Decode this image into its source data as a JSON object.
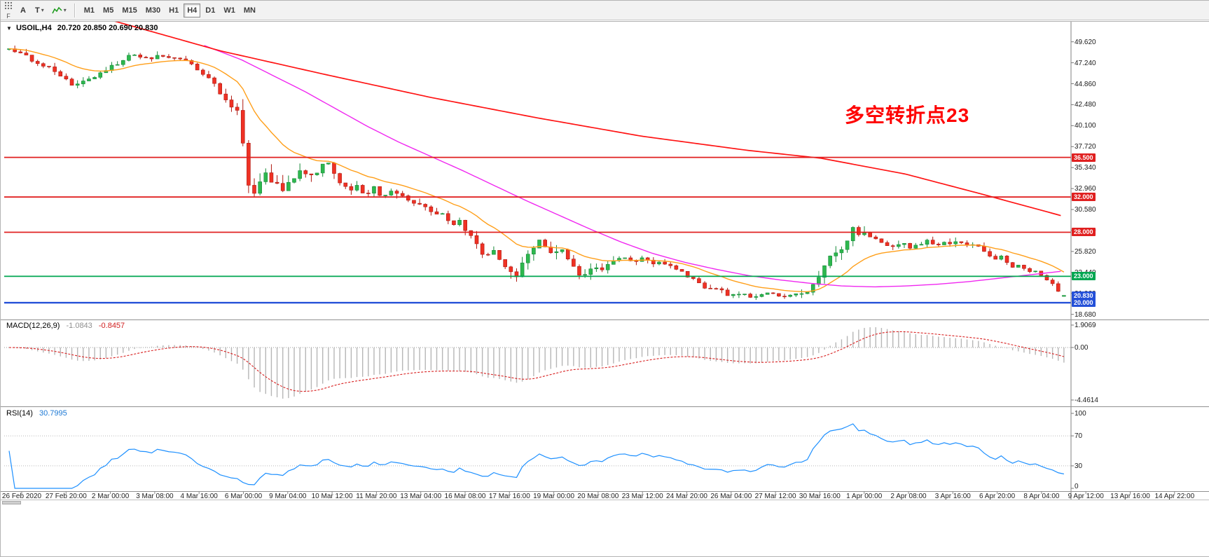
{
  "toolbar": {
    "corner_label": "F",
    "a_button": "A",
    "t_button": "T",
    "caret": "▾",
    "timeframes": [
      "M1",
      "M5",
      "M15",
      "M30",
      "H1",
      "H4",
      "D1",
      "W1",
      "MN"
    ],
    "active_timeframe": "H4"
  },
  "chart": {
    "dropdown_glyph": "▼",
    "symbol": "USOIL,H4",
    "ohlc_text": "20.720 20.850 20.690 20.830",
    "annotation": "多空转折点23",
    "annotation_color": "#fe0000",
    "price_axis": [
      "49.620",
      "47.240",
      "44.860",
      "42.480",
      "40.100",
      "37.720",
      "35.340",
      "32.960",
      "30.580",
      "28.200",
      "25.820",
      "23.440",
      "21.060",
      "18.680"
    ],
    "levels": [
      {
        "label": "36.500",
        "value": 36.5,
        "color": "#e02020",
        "thickness": 1.8
      },
      {
        "label": "32.000",
        "value": 32.0,
        "color": "#e02020",
        "thickness": 1.8
      },
      {
        "label": "28.000",
        "value": 28.0,
        "color": "#e02020",
        "thickness": 1.8
      },
      {
        "label": "23.000",
        "value": 23.0,
        "color": "#00a651",
        "thickness": 1.8
      },
      {
        "label": "20.000",
        "value": 20.0,
        "color": "#2450d8",
        "thickness": 2.4
      }
    ],
    "current_price": {
      "label": "20.830",
      "value": 20.83,
      "color": "#2450d8"
    },
    "time_axis": [
      "26 Feb 2020",
      "27 Feb 20:00",
      "2 Mar 00:00",
      "3 Mar 08:00",
      "4 Mar 16:00",
      "6 Mar 00:00",
      "9 Mar 04:00",
      "10 Mar 12:00",
      "11 Mar 20:00",
      "13 Mar 04:00",
      "16 Mar 08:00",
      "17 Mar 16:00",
      "19 Mar 00:00",
      "20 Mar 08:00",
      "23 Mar 12:00",
      "24 Mar 20:00",
      "26 Mar 04:00",
      "27 Mar 12:00",
      "30 Mar 16:00",
      "1 Apr 00:00",
      "2 Apr 08:00",
      "3 Apr 16:00",
      "6 Apr 20:00",
      "8 Apr 04:00",
      "9 Apr 12:00",
      "13 Apr 16:00",
      "14 Apr 22:00"
    ]
  },
  "macd": {
    "name": "MACD(12,26,9)",
    "main_value": "-1.0843",
    "signal_value": "-0.8457",
    "scale": [
      {
        "label": "1.9069",
        "value": 1.9069
      },
      {
        "label": "0.00",
        "value": 0
      },
      {
        "label": "-4.4614",
        "value": -4.4614
      }
    ]
  },
  "rsi": {
    "name": "RSI(14)",
    "value": "30.7995",
    "scale": [
      {
        "label": "100",
        "value": 100
      },
      {
        "label": "70",
        "value": 70
      },
      {
        "label": "30",
        "value": 30
      },
      {
        "label": "0",
        "value": 0
      }
    ],
    "levels": [
      70,
      30
    ]
  },
  "chart_data": {
    "type": "candlestick",
    "symbol": "USOIL",
    "timeframe": "H4",
    "current_ohlc": {
      "open": 20.72,
      "high": 20.85,
      "low": 20.69,
      "close": 20.83
    },
    "candle_count": 186,
    "seed": 20200414,
    "candle_up_color": "#2db84e",
    "candle_up_border": "#168a38",
    "candle_down_color": "#ef3124",
    "candle_down_border": "#b01810",
    "price_anchors": [
      [
        0.0,
        49.0
      ],
      [
        0.015,
        48.1
      ],
      [
        0.03,
        47.0
      ],
      [
        0.044,
        46.3
      ],
      [
        0.058,
        44.8
      ],
      [
        0.072,
        45.2
      ],
      [
        0.094,
        46.5
      ],
      [
        0.106,
        47.5
      ],
      [
        0.117,
        48.3
      ],
      [
        0.13,
        47.7
      ],
      [
        0.143,
        48.1
      ],
      [
        0.158,
        47.8
      ],
      [
        0.172,
        47.2
      ],
      [
        0.184,
        46.1
      ],
      [
        0.198,
        44.2
      ],
      [
        0.212,
        42.2
      ],
      [
        0.219,
        41.4
      ],
      [
        0.225,
        33.0
      ],
      [
        0.231,
        31.9
      ],
      [
        0.238,
        33.8
      ],
      [
        0.245,
        34.6
      ],
      [
        0.252,
        33.6
      ],
      [
        0.26,
        32.9
      ],
      [
        0.27,
        34.2
      ],
      [
        0.281,
        35.0
      ],
      [
        0.29,
        34.5
      ],
      [
        0.302,
        36.2
      ],
      [
        0.31,
        34.6
      ],
      [
        0.32,
        32.7
      ],
      [
        0.329,
        33.3
      ],
      [
        0.338,
        32.0
      ],
      [
        0.346,
        33.1
      ],
      [
        0.356,
        31.9
      ],
      [
        0.365,
        32.8
      ],
      [
        0.374,
        32.0
      ],
      [
        0.382,
        30.9
      ],
      [
        0.39,
        31.4
      ],
      [
        0.4,
        30.1
      ],
      [
        0.409,
        30.2
      ],
      [
        0.418,
        28.9
      ],
      [
        0.427,
        29.2
      ],
      [
        0.438,
        27.7
      ],
      [
        0.45,
        25.5
      ],
      [
        0.458,
        25.9
      ],
      [
        0.468,
        24.2
      ],
      [
        0.48,
        23.0
      ],
      [
        0.49,
        25.0
      ],
      [
        0.5,
        26.8
      ],
      [
        0.505,
        27.2
      ],
      [
        0.514,
        25.7
      ],
      [
        0.523,
        25.9
      ],
      [
        0.533,
        24.3
      ],
      [
        0.544,
        22.9
      ],
      [
        0.553,
        23.9
      ],
      [
        0.562,
        23.6
      ],
      [
        0.572,
        24.7
      ],
      [
        0.581,
        25.2
      ],
      [
        0.591,
        24.8
      ],
      [
        0.601,
        24.9
      ],
      [
        0.611,
        24.4
      ],
      [
        0.621,
        24.6
      ],
      [
        0.631,
        24.1
      ],
      [
        0.641,
        23.3
      ],
      [
        0.651,
        22.3
      ],
      [
        0.661,
        21.5
      ],
      [
        0.671,
        21.7
      ],
      [
        0.681,
        21.0
      ],
      [
        0.691,
        21.1
      ],
      [
        0.701,
        20.8
      ],
      [
        0.706,
        20.4
      ],
      [
        0.711,
        21.1
      ],
      [
        0.721,
        21.1
      ],
      [
        0.731,
        20.8
      ],
      [
        0.741,
        20.9
      ],
      [
        0.751,
        21.0
      ],
      [
        0.76,
        21.6
      ],
      [
        0.767,
        23.0
      ],
      [
        0.774,
        24.7
      ],
      [
        0.78,
        25.7
      ],
      [
        0.786,
        25.2
      ],
      [
        0.793,
        26.9
      ],
      [
        0.8,
        28.4
      ],
      [
        0.807,
        27.7
      ],
      [
        0.813,
        28.0
      ],
      [
        0.82,
        27.1
      ],
      [
        0.828,
        26.8
      ],
      [
        0.836,
        26.4
      ],
      [
        0.845,
        26.8
      ],
      [
        0.853,
        26.3
      ],
      [
        0.861,
        26.6
      ],
      [
        0.869,
        27.0
      ],
      [
        0.877,
        26.5
      ],
      [
        0.885,
        26.9
      ],
      [
        0.893,
        26.5
      ],
      [
        0.901,
        27.1
      ],
      [
        0.909,
        26.7
      ],
      [
        0.917,
        26.8
      ],
      [
        0.925,
        25.6
      ],
      [
        0.933,
        24.9
      ],
      [
        0.941,
        25.2
      ],
      [
        0.949,
        24.1
      ],
      [
        0.957,
        24.3
      ],
      [
        0.965,
        23.6
      ],
      [
        0.972,
        23.6
      ],
      [
        0.979,
        23.1
      ],
      [
        0.985,
        22.6
      ],
      [
        0.99,
        22.0
      ],
      [
        0.995,
        21.3
      ],
      [
        1.0,
        20.9
      ]
    ],
    "volatility_anchors": [
      [
        0.0,
        0.9
      ],
      [
        0.1,
        0.85
      ],
      [
        0.17,
        0.8
      ],
      [
        0.205,
        1.1
      ],
      [
        0.218,
        1.6
      ],
      [
        0.226,
        3.2
      ],
      [
        0.236,
        2.6
      ],
      [
        0.25,
        1.9
      ],
      [
        0.28,
        1.6
      ],
      [
        0.32,
        1.4
      ],
      [
        0.36,
        1.2
      ],
      [
        0.4,
        1.2
      ],
      [
        0.44,
        1.3
      ],
      [
        0.47,
        1.5
      ],
      [
        0.5,
        1.5
      ],
      [
        0.53,
        1.3
      ],
      [
        0.57,
        1.0
      ],
      [
        0.62,
        0.9
      ],
      [
        0.66,
        0.8
      ],
      [
        0.7,
        0.8
      ],
      [
        0.74,
        0.55
      ],
      [
        0.765,
        1.3
      ],
      [
        0.78,
        1.6
      ],
      [
        0.81,
        1.5
      ],
      [
        0.83,
        1.0
      ],
      [
        0.86,
        0.8
      ],
      [
        0.9,
        0.9
      ],
      [
        0.93,
        0.8
      ],
      [
        0.96,
        0.6
      ],
      [
        1.0,
        0.45
      ]
    ],
    "ma_lines": {
      "orange": {
        "type": "ema",
        "period": 16,
        "color": "#ff9f1a"
      },
      "magenta": {
        "type": "anchors",
        "color": "#f028f0",
        "points": [
          [
            0.185,
            49.2
          ],
          [
            0.22,
            47.6
          ],
          [
            0.25,
            45.8
          ],
          [
            0.28,
            44.0
          ],
          [
            0.31,
            42.0
          ],
          [
            0.34,
            40.0
          ],
          [
            0.37,
            38.2
          ],
          [
            0.4,
            36.6
          ],
          [
            0.43,
            35.0
          ],
          [
            0.46,
            33.3
          ],
          [
            0.49,
            31.6
          ],
          [
            0.52,
            30.0
          ],
          [
            0.55,
            28.4
          ],
          [
            0.58,
            26.9
          ],
          [
            0.61,
            25.6
          ],
          [
            0.64,
            24.6
          ],
          [
            0.67,
            23.8
          ],
          [
            0.7,
            23.1
          ],
          [
            0.73,
            22.6
          ],
          [
            0.76,
            22.2
          ],
          [
            0.79,
            21.9
          ],
          [
            0.82,
            21.8
          ],
          [
            0.85,
            21.9
          ],
          [
            0.88,
            22.1
          ],
          [
            0.91,
            22.4
          ],
          [
            0.94,
            22.8
          ],
          [
            0.97,
            23.2
          ],
          [
            1.0,
            23.6
          ]
        ]
      },
      "red": {
        "type": "anchors",
        "color": "#ff1414",
        "points": [
          [
            0.093,
            52.2
          ],
          [
            0.2,
            48.6
          ],
          [
            0.3,
            45.9
          ],
          [
            0.4,
            43.3
          ],
          [
            0.5,
            41.0
          ],
          [
            0.6,
            38.9
          ],
          [
            0.7,
            37.3
          ],
          [
            0.77,
            36.4
          ],
          [
            0.85,
            34.6
          ],
          [
            0.92,
            32.4
          ],
          [
            1.0,
            29.8
          ]
        ]
      }
    },
    "indicators": {
      "macd": {
        "fast": 12,
        "slow": 26,
        "signal": 9,
        "histogram_color": "#b6b6b6",
        "signal_color": "#d82020"
      },
      "rsi": {
        "period": 14,
        "color": "#1e90ff"
      }
    }
  }
}
